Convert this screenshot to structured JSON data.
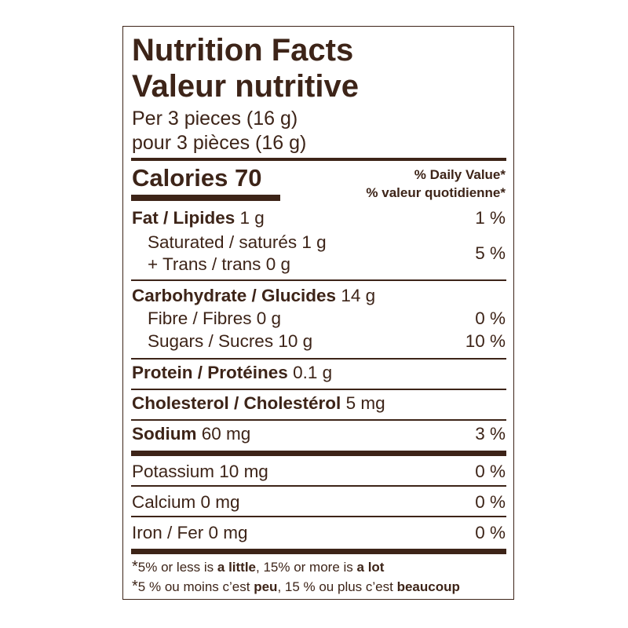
{
  "title_en": "Nutrition Facts",
  "title_fr": "Valeur nutritive",
  "serving_en": "Per 3 pieces (16 g)",
  "serving_fr": "pour 3 pièces (16 g)",
  "calories_label": "Calories",
  "calories_value": "70",
  "dv_en": "% Daily Value*",
  "dv_fr": "% valeur quotidienne*",
  "rows": {
    "fat": {
      "label": "Fat / Lipides",
      "amount": "1 g",
      "dv": "1 %"
    },
    "saturated": {
      "label": "Saturated / saturés 1 g"
    },
    "trans": {
      "label": "+ Trans / trans 0 g"
    },
    "sat_trans_dv": "5 %",
    "carb": {
      "label": "Carbohydrate / Glucides",
      "amount": "14 g"
    },
    "fibre": {
      "label": "Fibre / Fibres 0 g",
      "dv": "0 %"
    },
    "sugars": {
      "label": "Sugars / Sucres 10 g",
      "dv": "10 %"
    },
    "protein": {
      "label": "Protein / Protéines",
      "amount": "0.1 g"
    },
    "cholesterol": {
      "label": "Cholesterol / Cholestérol",
      "amount": "5 mg"
    },
    "sodium": {
      "label": "Sodium",
      "amount": "60 mg",
      "dv": "3 %"
    },
    "potassium": {
      "label": "Potassium 10 mg",
      "dv": "0 %"
    },
    "calcium": {
      "label": "Calcium 0 mg",
      "dv": "0 %"
    },
    "iron": {
      "label": "Iron / Fer 0 mg",
      "dv": "0 %"
    }
  },
  "footnote_en": {
    "star": "*",
    "p1": "5% or less is ",
    "b1": "a little",
    "p2": ", 15% or more is ",
    "b2": "a lot"
  },
  "footnote_fr": {
    "star": "*",
    "p1": "5 % ou moins c’est ",
    "b1": "peu",
    "p2": ", 15 % ou plus c’est ",
    "b2": "beaucoup"
  },
  "colors": {
    "ink": "#3d2418",
    "background": "#ffffff"
  }
}
